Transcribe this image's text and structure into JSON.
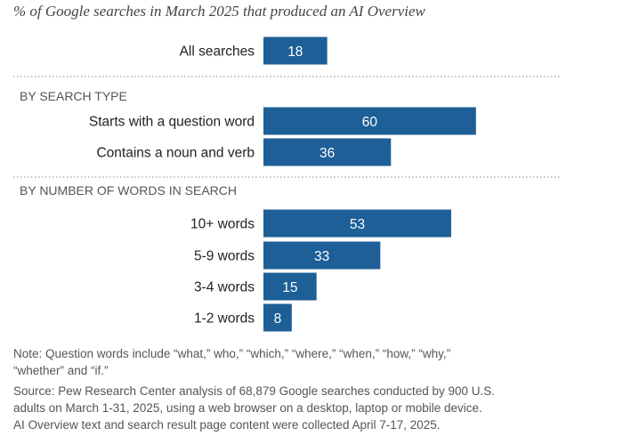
{
  "title": "% of Google searches in March 2025 that produced an AI Overview",
  "chart_data": {
    "type": "bar",
    "orientation": "horizontal",
    "title": "% of Google searches in March 2025 that produced an AI Overview",
    "bar_color": "#1d5f96",
    "xlim": [
      0,
      100
    ],
    "groups": [
      {
        "heading": "",
        "categories": [
          "All searches"
        ],
        "values": [
          18
        ]
      },
      {
        "heading": "BY SEARCH TYPE",
        "categories": [
          "Starts with a question word",
          "Contains a noun and verb"
        ],
        "values": [
          60,
          36
        ]
      },
      {
        "heading": "BY NUMBER OF WORDS IN SEARCH",
        "categories": [
          "10+ words",
          "5-9 words",
          "3-4 words",
          "1-2 words"
        ],
        "values": [
          53,
          33,
          15,
          8
        ]
      }
    ]
  },
  "notes": {
    "note_line1": "Note: Question words include “what,” who,” “which,” “where,” “when,” “how,” “why,”",
    "note_line2": "“whether” and “if.”",
    "source_line1": "Source: Pew Research Center analysis of 68,879 Google searches conducted by 900 U.S.",
    "source_line2": "adults on March 1-31, 2025, using a web browser on a desktop, laptop or mobile device.",
    "source_line3": "AI Overview text and search result page content were collected April 7-17, 2025."
  }
}
